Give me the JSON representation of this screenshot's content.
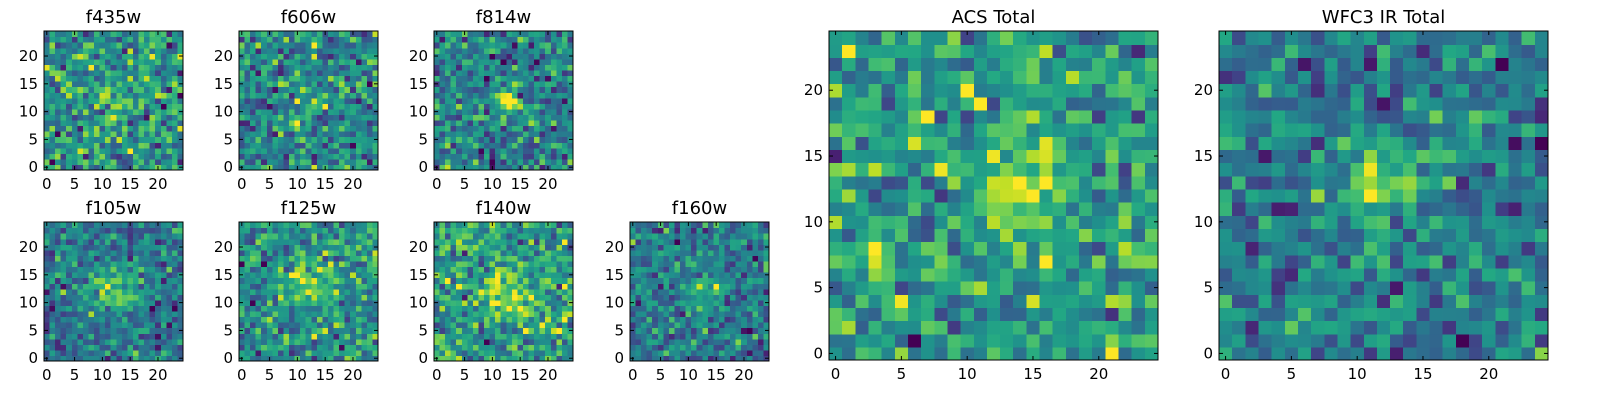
{
  "figure": {
    "background": "#ffffff",
    "axes_color": "#000000"
  },
  "chart_data": [
    {
      "type": "heatmap",
      "title": "f435w",
      "grid": false,
      "size": 25,
      "xticks": [
        0,
        5,
        10,
        15,
        20
      ],
      "yticks": [
        0,
        5,
        10,
        15,
        20
      ],
      "xlim": [
        -0.5,
        24.5
      ],
      "ylim": [
        -0.5,
        24.5
      ],
      "colormap": "viridis",
      "seed": 435,
      "source": {
        "x": 11.5,
        "y": 11,
        "amplitude": 0.15,
        "sigma": 2.5
      }
    },
    {
      "type": "heatmap",
      "title": "f606w",
      "grid": false,
      "size": 25,
      "xticks": [
        0,
        5,
        10,
        15,
        20
      ],
      "yticks": [
        0,
        5,
        10,
        15,
        20
      ],
      "xlim": [
        -0.5,
        24.5
      ],
      "ylim": [
        -0.5,
        24.5
      ],
      "colormap": "viridis",
      "seed": 606,
      "source": {
        "x": 12,
        "y": 12,
        "amplitude": 0.1,
        "sigma": 2.5
      }
    },
    {
      "type": "heatmap",
      "title": "f814w",
      "grid": false,
      "size": 25,
      "xticks": [
        0,
        5,
        10,
        15,
        20
      ],
      "yticks": [
        0,
        5,
        10,
        15,
        20
      ],
      "xlim": [
        -0.5,
        24.5
      ],
      "ylim": [
        -0.5,
        24.5
      ],
      "colormap": "viridis",
      "seed": 814,
      "source": {
        "x": 12.5,
        "y": 12,
        "amplitude": 0.45,
        "sigma": 1.8
      }
    },
    {
      "type": "heatmap",
      "title": "f105w",
      "grid": false,
      "size": 25,
      "xticks": [
        0,
        5,
        10,
        15,
        20
      ],
      "yticks": [
        0,
        5,
        10,
        15,
        20
      ],
      "xlim": [
        -0.5,
        24.5
      ],
      "ylim": [
        -0.5,
        24.5
      ],
      "colormap": "viridis",
      "seed": 105,
      "source": {
        "x": 12,
        "y": 12.5,
        "amplitude": 0.4,
        "sigma": 3.2
      }
    },
    {
      "type": "heatmap",
      "title": "f125w",
      "grid": false,
      "size": 25,
      "xticks": [
        0,
        5,
        10,
        15,
        20
      ],
      "yticks": [
        0,
        5,
        10,
        15,
        20
      ],
      "xlim": [
        -0.5,
        24.5
      ],
      "ylim": [
        -0.5,
        24.5
      ],
      "colormap": "viridis",
      "seed": 125,
      "source": {
        "x": 12,
        "y": 13,
        "amplitude": 0.35,
        "sigma": 3
      }
    },
    {
      "type": "heatmap",
      "title": "f140w",
      "grid": false,
      "size": 25,
      "xticks": [
        0,
        5,
        10,
        15,
        20
      ],
      "yticks": [
        0,
        5,
        10,
        15,
        20
      ],
      "xlim": [
        -0.5,
        24.5
      ],
      "ylim": [
        -0.5,
        24.5
      ],
      "colormap": "viridis",
      "seed": 140,
      "source": {
        "x": 13,
        "y": 12,
        "amplitude": 0.35,
        "sigma": 3
      }
    },
    {
      "type": "heatmap",
      "title": "f160w",
      "grid": false,
      "size": 25,
      "xticks": [
        0,
        5,
        10,
        15,
        20
      ],
      "yticks": [
        0,
        5,
        10,
        15,
        20
      ],
      "xlim": [
        -0.5,
        24.5
      ],
      "ylim": [
        -0.5,
        24.5
      ],
      "colormap": "viridis",
      "seed": 160,
      "source": {
        "x": 13,
        "y": 12,
        "amplitude": 0.3,
        "sigma": 3
      }
    },
    {
      "type": "heatmap",
      "title": "ACS Total",
      "grid": false,
      "size": 25,
      "xticks": [
        0,
        5,
        10,
        15,
        20
      ],
      "yticks": [
        0,
        5,
        10,
        15,
        20
      ],
      "xlim": [
        -0.5,
        24.5
      ],
      "ylim": [
        -0.5,
        24.5
      ],
      "colormap": "viridis",
      "seed": 1001,
      "source": {
        "x": 13,
        "y": 12,
        "amplitude": 0.3,
        "sigma": 2.2
      }
    },
    {
      "type": "heatmap",
      "title": "WFC3 IR Total",
      "grid": false,
      "size": 25,
      "xticks": [
        0,
        5,
        10,
        15,
        20
      ],
      "yticks": [
        0,
        5,
        10,
        15,
        20
      ],
      "xlim": [
        -0.5,
        24.5
      ],
      "ylim": [
        -0.5,
        24.5
      ],
      "colormap": "viridis",
      "seed": 2002,
      "source": {
        "x": 12,
        "y": 12.5,
        "amplitude": 0.45,
        "sigma": 2.6
      }
    }
  ]
}
